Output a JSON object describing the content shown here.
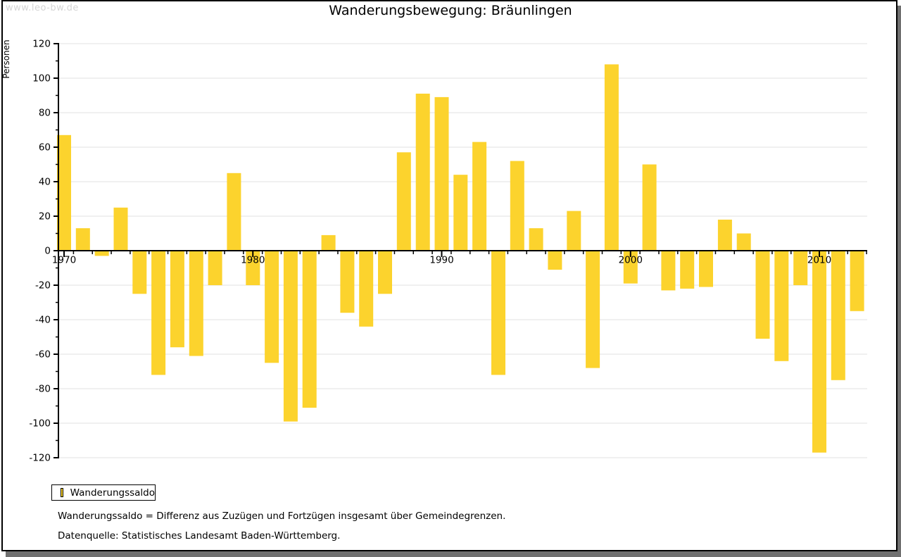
{
  "watermark": "www.leo-bw.de",
  "title": "Wanderungsbewegung: Bräunlingen",
  "legend": {
    "label": "Wanderungssaldo"
  },
  "footnotes": {
    "definition": "Wanderungssaldo = Differenz aus Zuzügen und Fortzügen insgesamt über Gemeindegrenzen.",
    "source": "Datenquelle: Statistisches Landesamt Baden-Württemberg."
  },
  "chart_data": {
    "type": "bar",
    "title": "Wanderungsbewegung: Bräunlingen",
    "xlabel": "",
    "ylabel": "Personen",
    "series_name": "Wanderungssaldo",
    "years": [
      1970,
      1971,
      1972,
      1973,
      1974,
      1975,
      1976,
      1977,
      1978,
      1979,
      1980,
      1981,
      1982,
      1983,
      1984,
      1985,
      1986,
      1987,
      1988,
      1989,
      1990,
      1991,
      1992,
      1993,
      1994,
      1995,
      1996,
      1997,
      1998,
      1999,
      2000,
      2001,
      2002,
      2003,
      2004,
      2005,
      2006,
      2007,
      2008,
      2009,
      2010,
      2011,
      2012
    ],
    "values": [
      67,
      13,
      -3,
      25,
      -25,
      -72,
      -56,
      -61,
      -20,
      45,
      -20,
      -65,
      -99,
      -91,
      9,
      -36,
      -44,
      -25,
      57,
      91,
      89,
      44,
      63,
      -72,
      52,
      13,
      -11,
      23,
      -68,
      108,
      -19,
      50,
      -23,
      -22,
      -21,
      18,
      10,
      -51,
      -64,
      -20,
      -117,
      -75,
      -35
    ],
    "ylim": [
      -120,
      120
    ],
    "ytick_step": 20,
    "xticks_labeled": [
      1970,
      1980,
      1990,
      2000,
      2010
    ],
    "grid": "horizontal",
    "legend_position": "bottom-left",
    "bar_color": "#FCD32D",
    "grid_color": "#E0E0E0",
    "axis_color": "#000000"
  }
}
